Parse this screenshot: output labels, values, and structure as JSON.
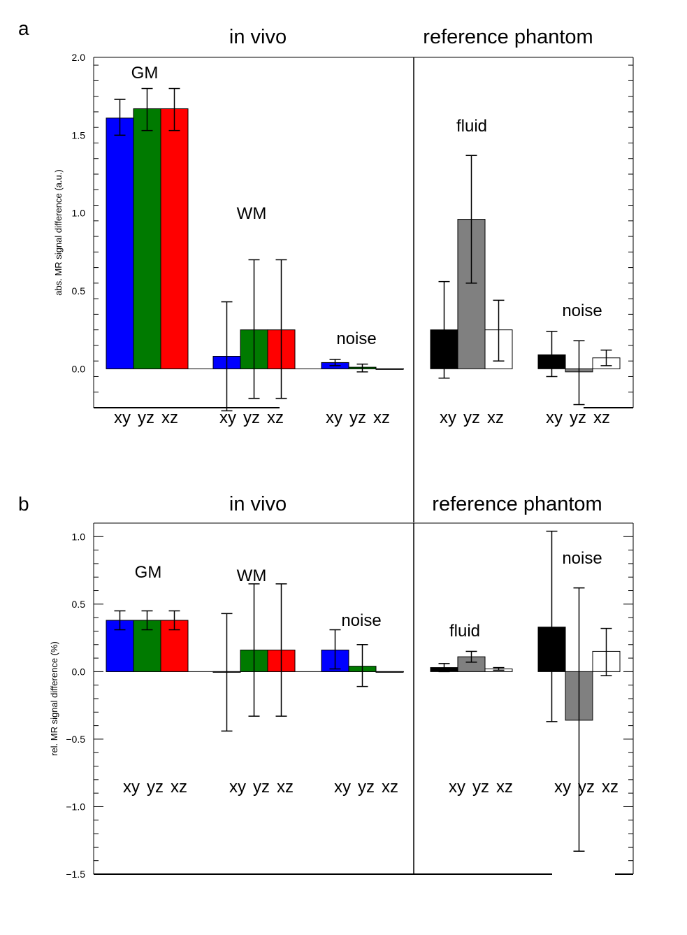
{
  "chart_data": [
    {
      "type": "bar",
      "panel_label": "a",
      "section_titles": {
        "left": "in vivo",
        "right": "reference phantom"
      },
      "ylabel": "abs. MR signal difference (a.u.)",
      "ylim": [
        -0.25,
        2.0
      ],
      "yticks": [
        0.0,
        0.5,
        1.0,
        1.5,
        2.0
      ],
      "ytick_labels": [
        "0.0",
        "0.5",
        "1.0",
        "1.5",
        "2.0"
      ],
      "categories": [
        "xy",
        "yz",
        "xz"
      ],
      "groups": [
        {
          "name": "GM",
          "section": "in vivo",
          "bars": [
            {
              "cat": "xy",
              "value": 1.61,
              "err_low": 1.5,
              "err_high": 1.73,
              "color": "#0000ff"
            },
            {
              "cat": "yz",
              "value": 1.67,
              "err_low": 1.53,
              "err_high": 1.8,
              "color": "#007a00"
            },
            {
              "cat": "xz",
              "value": 1.67,
              "err_low": 1.53,
              "err_high": 1.8,
              "color": "#ff0000"
            }
          ]
        },
        {
          "name": "WM",
          "section": "in vivo",
          "bars": [
            {
              "cat": "xy",
              "value": 0.08,
              "err_low": -0.27,
              "err_high": 0.43,
              "color": "#0000ff"
            },
            {
              "cat": "yz",
              "value": 0.25,
              "err_low": -0.19,
              "err_high": 0.7,
              "color": "#007a00"
            },
            {
              "cat": "xz",
              "value": 0.25,
              "err_low": -0.19,
              "err_high": 0.7,
              "color": "#ff0000"
            }
          ]
        },
        {
          "name": "noise",
          "section": "in vivo",
          "bars": [
            {
              "cat": "xy",
              "value": 0.04,
              "err_low": 0.02,
              "err_high": 0.06,
              "color": "#0000ff"
            },
            {
              "cat": "yz",
              "value": 0.01,
              "err_low": -0.02,
              "err_high": 0.03,
              "color": "#007a00"
            },
            {
              "cat": "xz",
              "value": 0.0,
              "err_low": null,
              "err_high": null,
              "color": "#ff0000"
            }
          ]
        },
        {
          "name": "fluid",
          "section": "reference phantom",
          "bars": [
            {
              "cat": "xy",
              "value": 0.25,
              "err_low": -0.06,
              "err_high": 0.56,
              "color": "#000000"
            },
            {
              "cat": "yz",
              "value": 0.96,
              "err_low": 0.55,
              "err_high": 1.37,
              "color": "#808080"
            },
            {
              "cat": "xz",
              "value": 0.25,
              "err_low": 0.05,
              "err_high": 0.44,
              "color": "#ffffff"
            }
          ]
        },
        {
          "name": "noise",
          "section": "reference phantom",
          "bars": [
            {
              "cat": "xy",
              "value": 0.09,
              "err_low": -0.05,
              "err_high": 0.24,
              "color": "#000000"
            },
            {
              "cat": "yz",
              "value": -0.02,
              "err_low": -0.23,
              "err_high": 0.18,
              "color": "#808080"
            },
            {
              "cat": "xz",
              "value": 0.07,
              "err_low": 0.02,
              "err_high": 0.12,
              "color": "#ffffff"
            }
          ]
        }
      ]
    },
    {
      "type": "bar",
      "panel_label": "b",
      "section_titles": {
        "left": "in vivo",
        "right": "reference phantom"
      },
      "ylabel": "rel. MR signal difference (%)",
      "ylim": [
        -1.5,
        1.1
      ],
      "yticks": [
        -1.5,
        -1.0,
        -0.5,
        0.0,
        0.5,
        1.0
      ],
      "ytick_labels": [
        "−1.5",
        "−1.0",
        "−0.5",
        "0.0",
        "0.5",
        "1.0"
      ],
      "categories": [
        "xy",
        "yz",
        "xz"
      ],
      "groups": [
        {
          "name": "GM",
          "section": "in vivo",
          "bars": [
            {
              "cat": "xy",
              "value": 0.38,
              "err_low": 0.31,
              "err_high": 0.45,
              "color": "#0000ff"
            },
            {
              "cat": "yz",
              "value": 0.38,
              "err_low": 0.31,
              "err_high": 0.45,
              "color": "#007a00"
            },
            {
              "cat": "xz",
              "value": 0.38,
              "err_low": 0.31,
              "err_high": 0.45,
              "color": "#ff0000"
            }
          ]
        },
        {
          "name": "WM",
          "section": "in vivo",
          "bars": [
            {
              "cat": "xy",
              "value": 0.0,
              "err_low": -0.44,
              "err_high": 0.43,
              "color": "#0000ff"
            },
            {
              "cat": "yz",
              "value": 0.16,
              "err_low": -0.33,
              "err_high": 0.65,
              "color": "#007a00"
            },
            {
              "cat": "xz",
              "value": 0.16,
              "err_low": -0.33,
              "err_high": 0.65,
              "color": "#ff0000"
            }
          ]
        },
        {
          "name": "noise",
          "section": "in vivo",
          "bars": [
            {
              "cat": "xy",
              "value": 0.16,
              "err_low": 0.02,
              "err_high": 0.31,
              "color": "#0000ff"
            },
            {
              "cat": "yz",
              "value": 0.04,
              "err_low": -0.11,
              "err_high": 0.2,
              "color": "#007a00"
            },
            {
              "cat": "xz",
              "value": 0.0,
              "err_low": null,
              "err_high": null,
              "color": "#ff0000"
            }
          ]
        },
        {
          "name": "fluid",
          "section": "reference phantom",
          "bars": [
            {
              "cat": "xy",
              "value": 0.03,
              "err_low": 0.0,
              "err_high": 0.06,
              "color": "#000000"
            },
            {
              "cat": "yz",
              "value": 0.11,
              "err_low": 0.07,
              "err_high": 0.15,
              "color": "#808080"
            },
            {
              "cat": "xz",
              "value": 0.02,
              "err_low": 0.01,
              "err_high": 0.03,
              "color": "#ffffff"
            }
          ]
        },
        {
          "name": "noise",
          "section": "reference phantom",
          "bars": [
            {
              "cat": "xy",
              "value": 0.33,
              "err_low": -0.37,
              "err_high": 1.04,
              "color": "#000000"
            },
            {
              "cat": "yz",
              "value": -0.36,
              "err_low": -1.33,
              "err_high": 0.62,
              "color": "#808080"
            },
            {
              "cat": "xz",
              "value": 0.15,
              "err_low": -0.03,
              "err_high": 0.32,
              "color": "#ffffff"
            }
          ]
        }
      ]
    }
  ]
}
